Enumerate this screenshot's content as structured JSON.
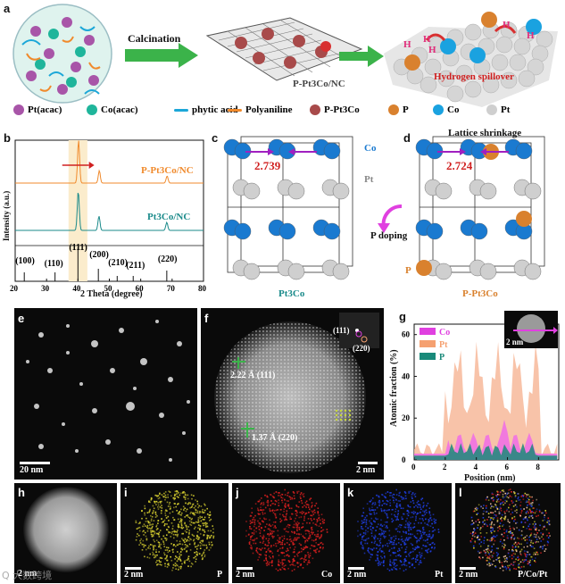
{
  "panel_a": {
    "label": "a",
    "calcination": "Calcination",
    "product": "P-Pt3Co/NC",
    "spillover": "Hydrogen spillover",
    "h_letter": "H",
    "legend": [
      {
        "text": "Pt(acac)",
        "color": "#a855a8"
      },
      {
        "text": "Co(acac)",
        "color": "#1fb59b"
      },
      {
        "text": "phytic acid",
        "color": "#1ca7d8"
      },
      {
        "text": "Polyaniline",
        "color": "#f08a2c"
      },
      {
        "text": "P-Pt3Co",
        "color": "#a84a4a"
      },
      {
        "text": "P",
        "color": "#d9812e"
      },
      {
        "text": "Co",
        "color": "#1aa2e0"
      },
      {
        "text": "Pt",
        "color": "#cfcfcf"
      }
    ]
  },
  "panel_b": {
    "label": "b",
    "ylabel": "Intensity (a.u.)",
    "xlabel": "2 Theta (degree)",
    "series_top": "P-Pt3Co/NC",
    "series_mid": "Pt3Co/NC",
    "xticks": [
      "20",
      "30",
      "40",
      "50",
      "60",
      "70",
      "80"
    ],
    "peaks": [
      "(100)",
      "(110)",
      "(111)",
      "(200)",
      "(210)",
      "(211)",
      "(220)"
    ]
  },
  "panel_c": {
    "label": "c",
    "distance": "2.739",
    "co": "Co",
    "pt": "Pt",
    "name": "Pt3Co"
  },
  "panel_d": {
    "label": "d",
    "title": "Lattice shrinkage",
    "distance": "2.724",
    "p": "P",
    "name": "P-Pt3Co",
    "doping": "P doping"
  },
  "panel_e": {
    "label": "e",
    "scale": "20 nm"
  },
  "panel_f": {
    "label": "f",
    "d1": "2.22 Å (111)",
    "d2": "1.37 Å (220)",
    "fft1": "(111)",
    "fft2": "(220)",
    "scale": "2 nm"
  },
  "panel_g": {
    "label": "g",
    "ylabel": "Atomic fraction (%)",
    "xlabel": "Position (nm)",
    "inset_scale": "2 nm",
    "legend": [
      {
        "text": "Co",
        "color": "#e040e0"
      },
      {
        "text": "Pt",
        "color": "#f5a070"
      },
      {
        "text": "P",
        "color": "#1a8a7a"
      }
    ],
    "xticks": [
      "0",
      "2",
      "4",
      "6",
      "8"
    ],
    "yticks": [
      "0",
      "20",
      "40",
      "60"
    ]
  },
  "panel_h": {
    "label": "h",
    "scale": "2 nm"
  },
  "panel_i": {
    "label": "i",
    "scale": "2 nm",
    "element": "P"
  },
  "panel_j": {
    "label": "j",
    "scale": "2 nm",
    "element": "Co"
  },
  "panel_k": {
    "label": "k",
    "scale": "2 nm",
    "element": "Pt"
  },
  "panel_l": {
    "label": "l",
    "scale": "2 nm",
    "element": "P/Co/Pt"
  },
  "watermark": "Q 大数跨境"
}
